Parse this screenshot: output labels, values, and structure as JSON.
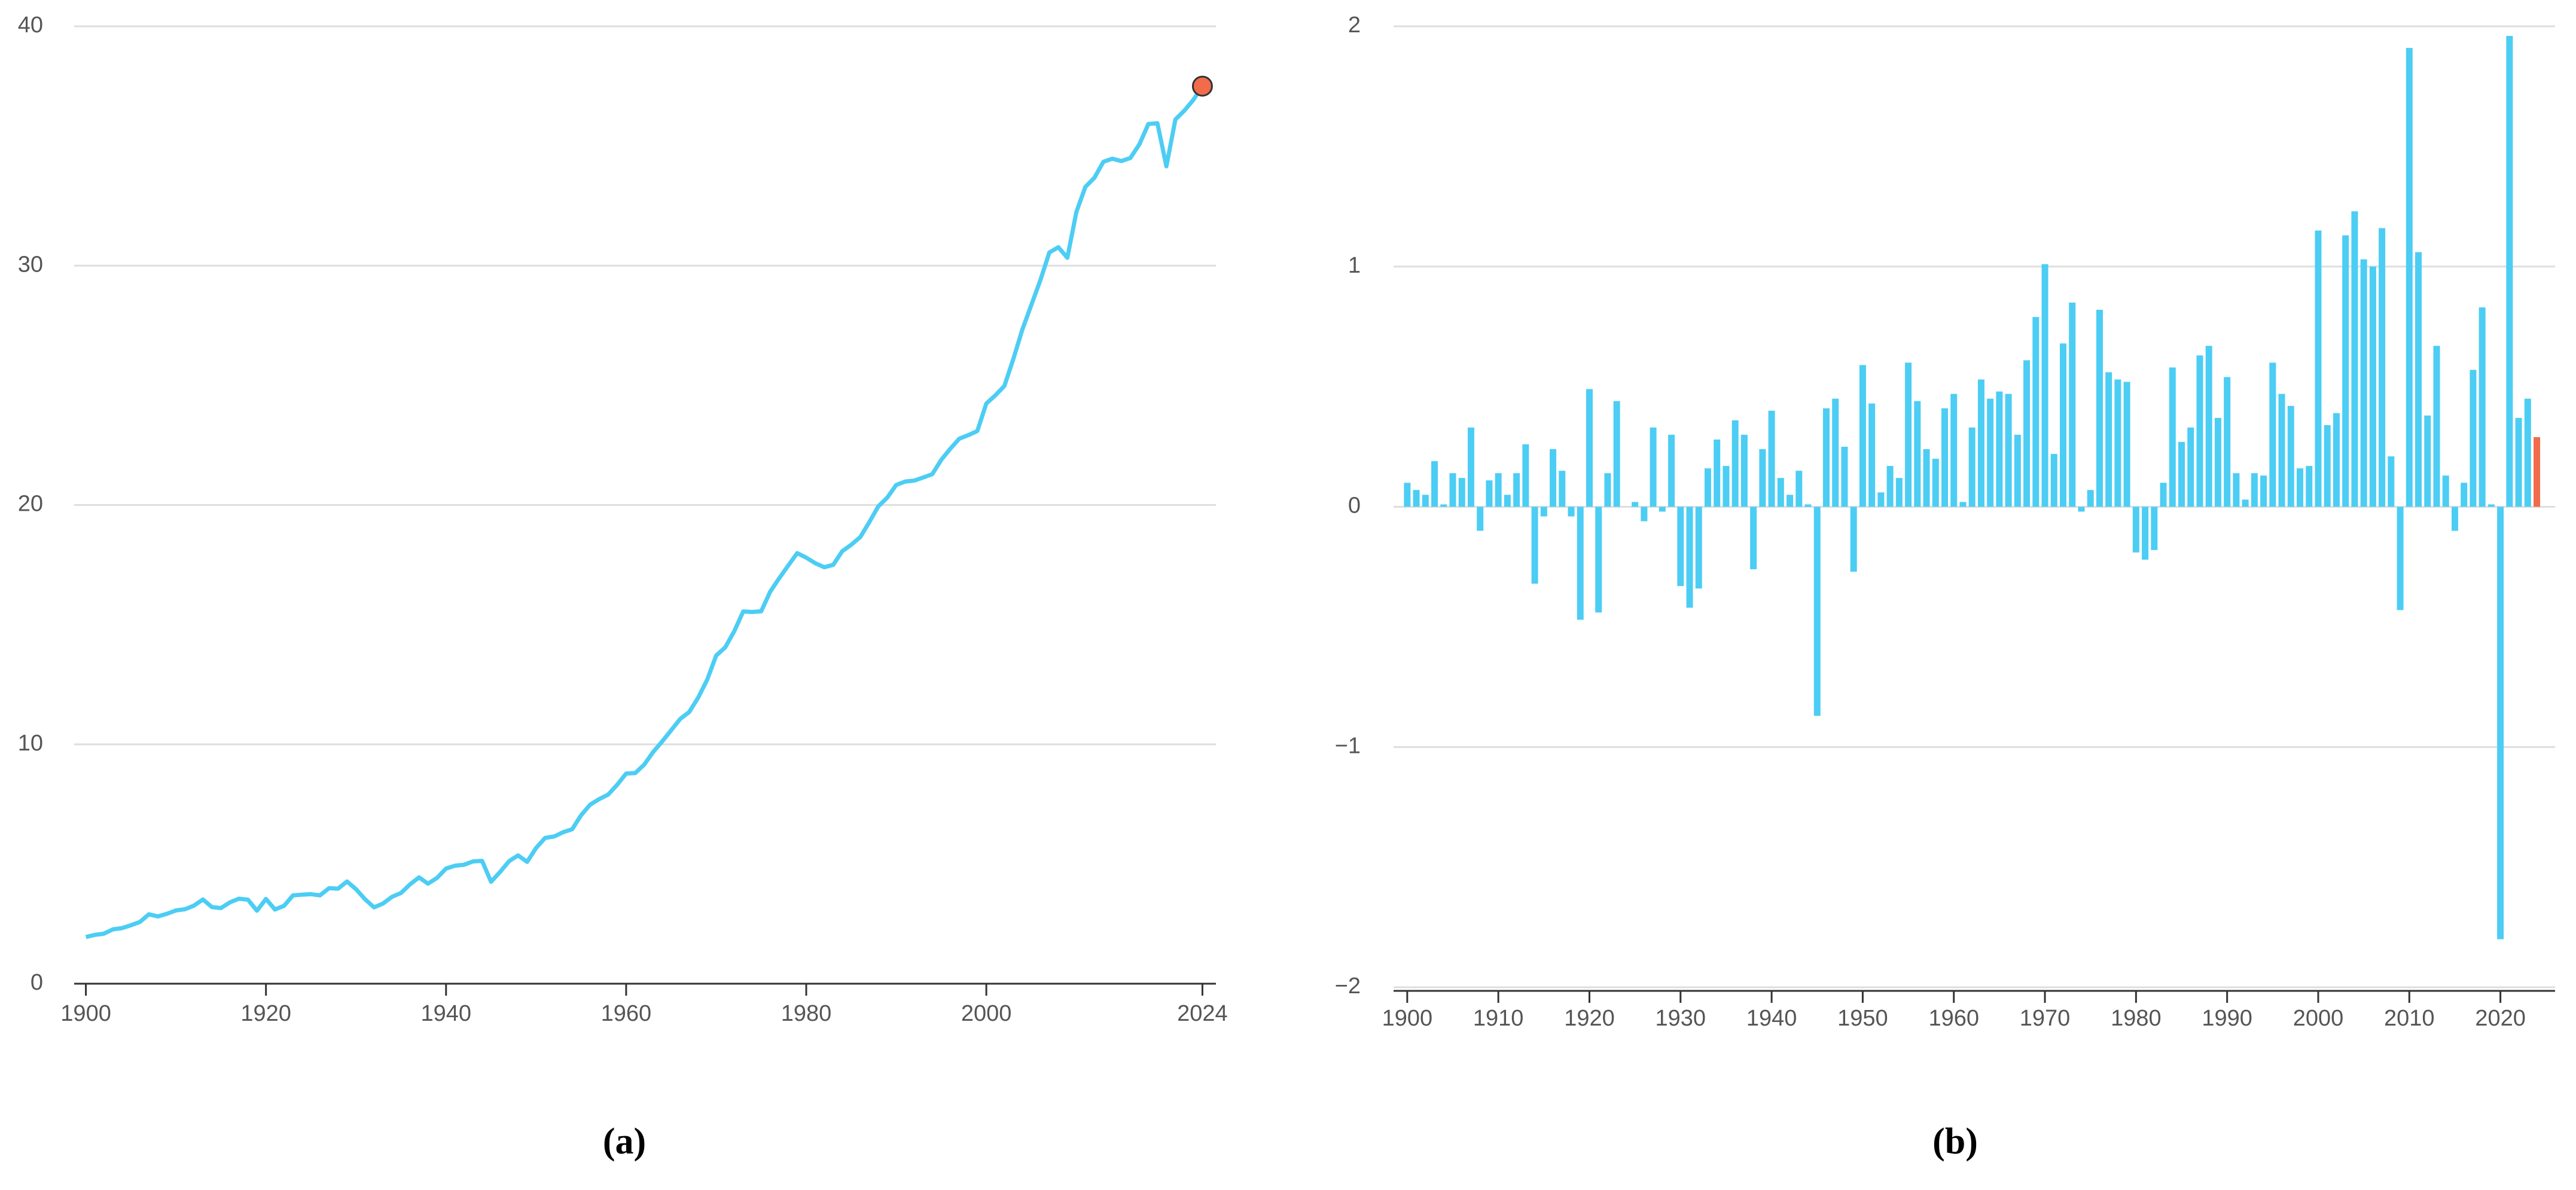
{
  "chart_data": [
    {
      "type": "line",
      "caption": "(a)",
      "color": "#4ccdf4",
      "highlight_color": "#f26b4a",
      "xlim": [
        1898.7,
        2025.5
      ],
      "xticks": [
        1900,
        1920,
        1940,
        1960,
        1980,
        2000,
        2024
      ],
      "ylim": [
        0,
        40
      ],
      "yticks": [
        0,
        10,
        20,
        30,
        40
      ],
      "grid": true,
      "x": [
        1900,
        1901,
        1902,
        1903,
        1904,
        1905,
        1906,
        1907,
        1908,
        1909,
        1910,
        1911,
        1912,
        1913,
        1914,
        1915,
        1916,
        1917,
        1918,
        1919,
        1920,
        1921,
        1922,
        1923,
        1924,
        1925,
        1926,
        1927,
        1928,
        1929,
        1930,
        1931,
        1932,
        1933,
        1934,
        1935,
        1936,
        1937,
        1938,
        1939,
        1940,
        1941,
        1942,
        1943,
        1944,
        1945,
        1946,
        1947,
        1948,
        1949,
        1950,
        1951,
        1952,
        1953,
        1954,
        1955,
        1956,
        1957,
        1958,
        1959,
        1960,
        1961,
        1962,
        1963,
        1964,
        1965,
        1966,
        1967,
        1968,
        1969,
        1970,
        1971,
        1972,
        1973,
        1974,
        1975,
        1976,
        1977,
        1978,
        1979,
        1980,
        1981,
        1982,
        1983,
        1984,
        1985,
        1986,
        1987,
        1988,
        1989,
        1990,
        1991,
        1992,
        1993,
        1994,
        1995,
        1996,
        1997,
        1998,
        1999,
        2000,
        2001,
        2002,
        2003,
        2004,
        2005,
        2006,
        2007,
        2008,
        2009,
        2010,
        2011,
        2012,
        2013,
        2014,
        2015,
        2016,
        2017,
        2018,
        2019,
        2020,
        2021,
        2022,
        2023,
        2024
      ],
      "values": [
        1.95,
        2.04,
        2.09,
        2.27,
        2.32,
        2.44,
        2.58,
        2.9,
        2.81,
        2.92,
        3.06,
        3.11,
        3.26,
        3.52,
        3.2,
        3.16,
        3.4,
        3.55,
        3.51,
        3.05,
        3.54,
        3.1,
        3.25,
        3.69,
        3.72,
        3.74,
        3.69,
        3.99,
        3.97,
        4.27,
        3.95,
        3.53,
        3.19,
        3.35,
        3.63,
        3.79,
        4.15,
        4.44,
        4.18,
        4.42,
        4.81,
        4.93,
        4.97,
        5.11,
        5.13,
        4.26,
        4.67,
        5.12,
        5.36,
        5.09,
        5.67,
        6.09,
        6.15,
        6.33,
        6.45,
        7.04,
        7.48,
        7.71,
        7.9,
        8.31,
        8.78,
        8.8,
        9.15,
        9.68,
        10.12,
        10.59,
        11.06,
        11.35,
        11.95,
        12.7,
        13.71,
        14.05,
        14.72,
        15.55,
        15.53,
        15.56,
        16.38,
        16.94,
        17.47,
        17.99,
        17.8,
        17.57,
        17.4,
        17.5,
        18.07,
        18.34,
        18.66,
        19.28,
        19.94,
        20.31,
        20.84,
        20.98,
        21.02,
        21.15,
        21.29,
        21.89,
        22.35,
        22.77,
        22.92,
        23.09,
        24.24,
        24.58,
        24.97,
        26.1,
        27.33,
        28.36,
        29.39,
        30.55,
        30.77,
        30.33,
        32.24,
        33.29,
        33.67,
        34.34,
        34.47,
        34.37,
        34.5,
        35.07,
        35.92,
        35.95,
        34.15,
        36.11,
        36.48,
        36.93,
        37.5
      ]
    },
    {
      "type": "bar",
      "caption": "(b)",
      "color": "#4ccdf4",
      "highlight_color": "#f26b4a",
      "xlim": [
        1898.5,
        2026
      ],
      "xticks": [
        1900,
        1910,
        1920,
        1930,
        1940,
        1950,
        1960,
        1970,
        1980,
        1990,
        2000,
        2010,
        2020
      ],
      "ylim": [
        -2,
        2
      ],
      "yticks": [
        {
          "value": -2,
          "label": "−2"
        },
        {
          "value": -1,
          "label": "−1"
        },
        0,
        1,
        2
      ],
      "grid": true,
      "x": [
        1900,
        1901,
        1902,
        1903,
        1904,
        1905,
        1906,
        1907,
        1908,
        1909,
        1910,
        1911,
        1912,
        1913,
        1914,
        1915,
        1916,
        1917,
        1918,
        1919,
        1920,
        1921,
        1922,
        1923,
        1924,
        1925,
        1926,
        1927,
        1928,
        1929,
        1930,
        1931,
        1932,
        1933,
        1934,
        1935,
        1936,
        1937,
        1938,
        1939,
        1940,
        1941,
        1942,
        1943,
        1944,
        1945,
        1946,
        1947,
        1948,
        1949,
        1950,
        1951,
        1952,
        1953,
        1954,
        1955,
        1956,
        1957,
        1958,
        1959,
        1960,
        1961,
        1962,
        1963,
        1964,
        1965,
        1966,
        1967,
        1968,
        1969,
        1970,
        1971,
        1972,
        1973,
        1974,
        1975,
        1976,
        1977,
        1978,
        1979,
        1980,
        1981,
        1982,
        1983,
        1984,
        1985,
        1986,
        1987,
        1988,
        1989,
        1990,
        1991,
        1992,
        1993,
        1994,
        1995,
        1996,
        1997,
        1998,
        1999,
        2000,
        2001,
        2002,
        2003,
        2004,
        2005,
        2006,
        2007,
        2008,
        2009,
        2010,
        2011,
        2012,
        2013,
        2014,
        2015,
        2016,
        2017,
        2018,
        2019,
        2020,
        2021,
        2022,
        2023,
        2024
      ],
      "values": [
        0.1,
        0.07,
        0.05,
        0.19,
        0.01,
        0.14,
        0.12,
        0.33,
        -0.1,
        0.11,
        0.14,
        0.05,
        0.14,
        0.26,
        -0.32,
        -0.04,
        0.24,
        0.15,
        -0.04,
        -0.47,
        0.49,
        -0.44,
        0.14,
        0.44,
        0,
        0.02,
        -0.06,
        0.33,
        -0.02,
        0.3,
        -0.33,
        -0.42,
        -0.34,
        0.16,
        0.28,
        0.17,
        0.36,
        0.3,
        -0.26,
        0.24,
        0.4,
        0.12,
        0.05,
        0.15,
        0.01,
        -0.87,
        0.41,
        0.45,
        0.25,
        -0.27,
        0.59,
        0.43,
        0.06,
        0.17,
        0.12,
        0.6,
        0.44,
        0.24,
        0.2,
        0.41,
        0.47,
        0.02,
        0.33,
        0.53,
        0.45,
        0.48,
        0.47,
        0.3,
        0.61,
        0.79,
        1.01,
        0.22,
        0.68,
        0.85,
        -0.02,
        0.07,
        0.82,
        0.56,
        0.53,
        0.52,
        -0.19,
        -0.22,
        -0.18,
        0.1,
        0.58,
        0.27,
        0.33,
        0.63,
        0.67,
        0.37,
        0.54,
        0.14,
        0.03,
        0.14,
        0.13,
        0.6,
        0.47,
        0.42,
        0.16,
        0.17,
        1.15,
        0.34,
        0.39,
        1.13,
        1.23,
        1.03,
        1,
        1.16,
        0.21,
        -0.43,
        1.91,
        1.06,
        0.38,
        0.67,
        0.13,
        -0.1,
        0.1,
        0.57,
        0.83,
        0.01,
        -1.8,
        1.96,
        0.37,
        0.45,
        0.29
      ]
    }
  ]
}
